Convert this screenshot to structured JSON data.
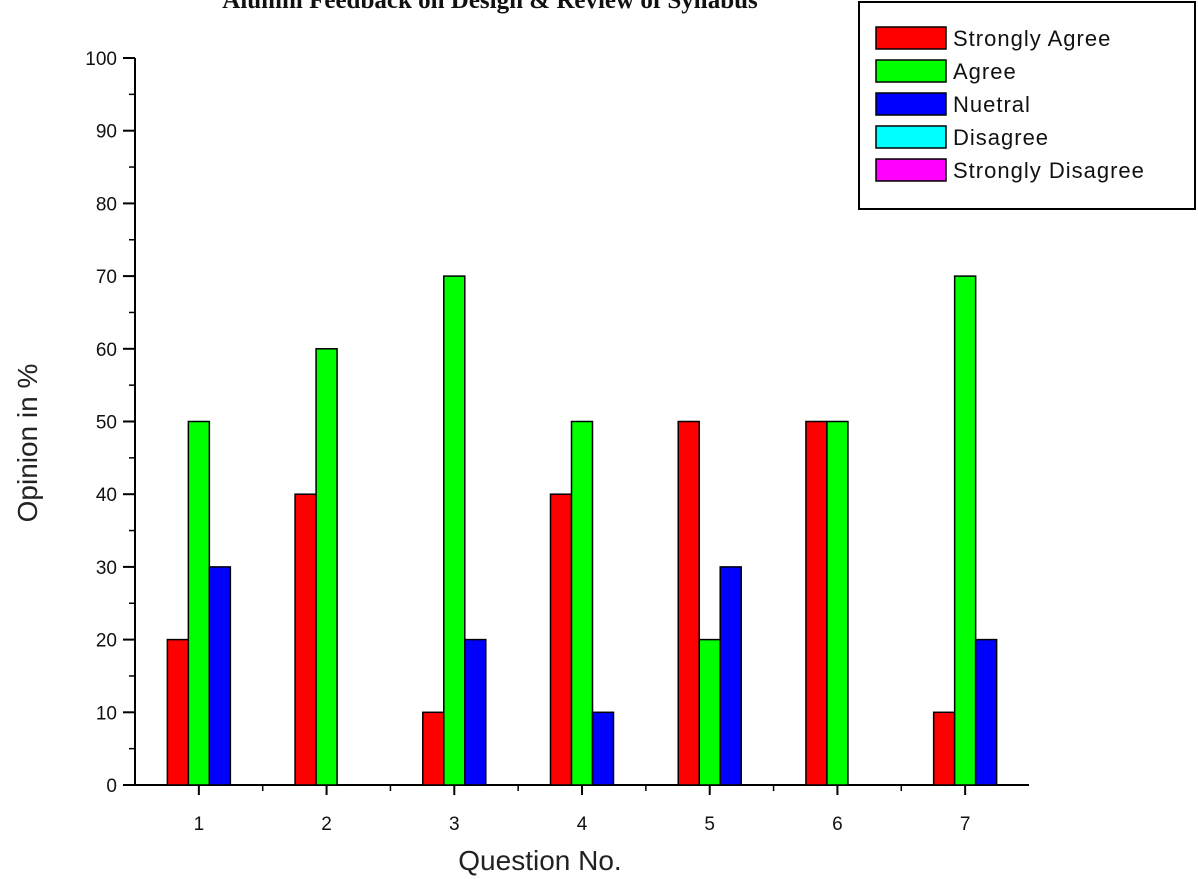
{
  "chart_data": {
    "type": "bar",
    "title": "Alumni Feedback on Design & Review of Syllabus",
    "xlabel": "Question No.",
    "ylabel": "Opinion in %",
    "ylim": [
      0,
      100
    ],
    "yticks": [
      0,
      10,
      20,
      30,
      40,
      50,
      60,
      70,
      80,
      90,
      100
    ],
    "categories": [
      "1",
      "2",
      "3",
      "4",
      "5",
      "6",
      "7"
    ],
    "series": [
      {
        "name": "Strongly Agree",
        "color": "#ff0000",
        "values": [
          20,
          40,
          10,
          40,
          50,
          50,
          10
        ]
      },
      {
        "name": "Agree",
        "color": "#00ff00",
        "values": [
          50,
          60,
          70,
          50,
          20,
          50,
          70
        ]
      },
      {
        "name": "Nuetral",
        "color": "#0000ff",
        "values": [
          30,
          0,
          20,
          10,
          30,
          0,
          20
        ]
      },
      {
        "name": "Disagree",
        "color": "#00ffff",
        "values": [
          0,
          0,
          0,
          0,
          0,
          0,
          0
        ]
      },
      {
        "name": "Strongly Disagree",
        "color": "#ff00ff",
        "values": [
          0,
          0,
          0,
          0,
          0,
          0,
          0
        ]
      }
    ],
    "grid": false,
    "legend": "top-right"
  }
}
